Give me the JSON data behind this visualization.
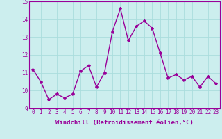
{
  "x": [
    0,
    1,
    2,
    3,
    4,
    5,
    6,
    7,
    8,
    9,
    10,
    11,
    12,
    13,
    14,
    15,
    16,
    17,
    18,
    19,
    20,
    21,
    22,
    23
  ],
  "y": [
    11.2,
    10.5,
    9.5,
    9.8,
    9.6,
    9.8,
    11.1,
    11.4,
    10.2,
    11.0,
    13.3,
    14.6,
    12.8,
    13.6,
    13.9,
    13.5,
    12.1,
    10.7,
    10.9,
    10.6,
    10.8,
    10.2,
    10.8,
    10.4
  ],
  "line_color": "#990099",
  "marker": "*",
  "marker_size": 3,
  "bg_color": "#cceeee",
  "grid_color": "#aadddd",
  "xlabel": "Windchill (Refroidissement éolien,°C)",
  "ylim": [
    9,
    15
  ],
  "xlim": [
    -0.5,
    23.5
  ],
  "yticks": [
    9,
    10,
    11,
    12,
    13,
    14,
    15
  ],
  "xticks": [
    0,
    1,
    2,
    3,
    4,
    5,
    6,
    7,
    8,
    9,
    10,
    11,
    12,
    13,
    14,
    15,
    16,
    17,
    18,
    19,
    20,
    21,
    22,
    23
  ],
  "xlabel_fontsize": 6.5,
  "tick_fontsize": 5.5,
  "line_width": 1.0
}
